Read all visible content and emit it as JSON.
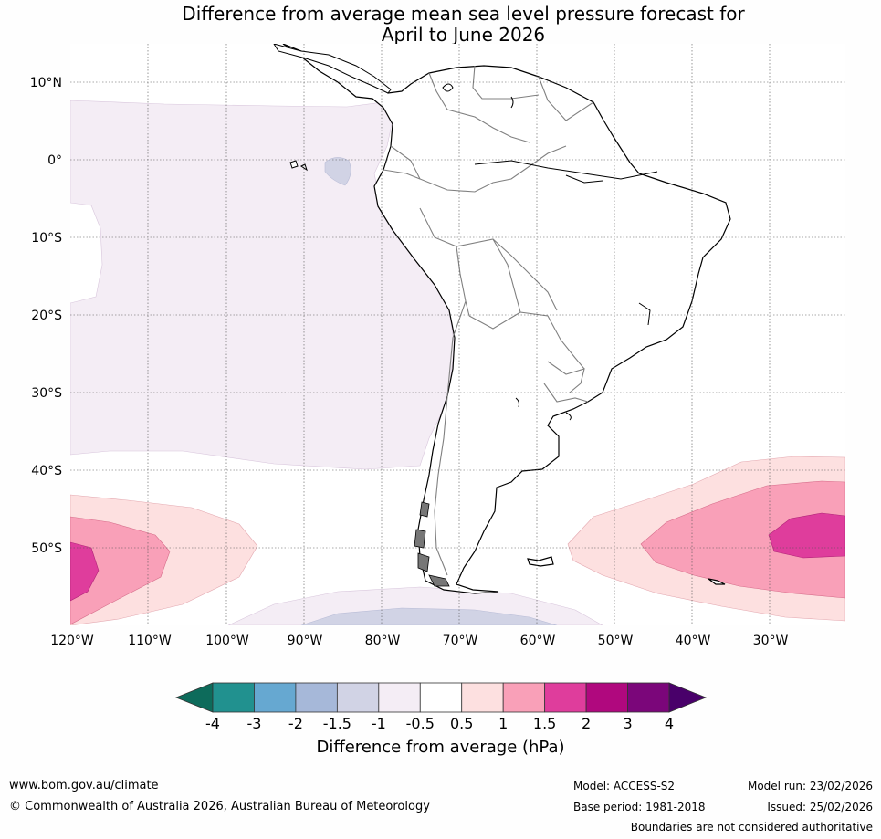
{
  "title": {
    "line1": "Difference from average mean sea level pressure forecast for",
    "line2": "April to June 2026"
  },
  "map": {
    "lat_labels": [
      "10°N",
      "0°",
      "10°S",
      "20°S",
      "30°S",
      "40°S",
      "50°S"
    ],
    "lon_labels": [
      "120°W",
      "110°W",
      "100°W",
      "90°W",
      "80°W",
      "70°W",
      "60°W",
      "50°W",
      "40°W",
      "30°W"
    ],
    "region": "South America and surrounding oceans",
    "anomaly_areas": [
      {
        "name": "east-pacific-band",
        "category": "-1 to -0.5"
      },
      {
        "name": "north-pacific-small-blob",
        "category": "-1.5 to -1"
      },
      {
        "name": "southern-pacific-high",
        "category": "0.5 to 2"
      },
      {
        "name": "southern-atlantic-high",
        "category": "0.5 to 2"
      },
      {
        "name": "southern-ocean-low",
        "category": "-1.5 to -0.5"
      }
    ]
  },
  "colorbar": {
    "colors": [
      "#0d6b5b",
      "#21918f",
      "#66a8d1",
      "#a6b8d9",
      "#d1d3e5",
      "#f4edf5",
      "#ffffff",
      "#fde0e0",
      "#f9a0b8",
      "#df3d9c",
      "#b0087e",
      "#7b067a",
      "#49006a"
    ],
    "tick_labels": [
      "-4",
      "-3",
      "-2",
      "-1.5",
      "-1",
      "-0.5",
      "0.5",
      "1",
      "1.5",
      "2",
      "3",
      "4"
    ],
    "label": "Difference from average (hPa)"
  },
  "footer": {
    "url": "www.bom.gov.au/climate",
    "copyright": "© Commonwealth of Australia 2026, Australian Bureau of Meteorology",
    "model": "Model: ACCESS-S2",
    "base_period": "Base period: 1981-2018",
    "model_run": "Model run: 23/02/2026",
    "issued": "Issued: 25/02/2026",
    "boundaries_note": "Boundaries are not considered authoritative"
  }
}
